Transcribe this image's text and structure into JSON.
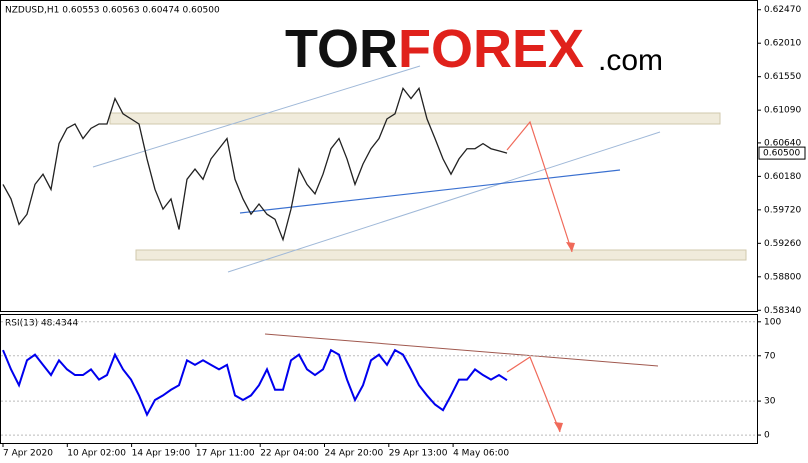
{
  "header": "NZDUSD,H1  0.60553 0.60563 0.60474 0.60500",
  "logo": {
    "part1": "TOR",
    "part2": "FOREX",
    "part3": ".com"
  },
  "charts": [
    {
      "type": "line",
      "color": "#222222",
      "ylim": [
        0.5833,
        0.6259
      ],
      "yticks": [
        {
          "value": 0.6247,
          "label": "0.62470"
        },
        {
          "value": 0.6201,
          "label": "0.62010"
        },
        {
          "value": 0.6155,
          "label": "0.61550"
        },
        {
          "value": 0.6109,
          "label": "0.61090"
        },
        {
          "value": 0.6064,
          "label": "0.60640"
        },
        {
          "value": 0.6018,
          "label": "0.60180"
        },
        {
          "value": 0.5972,
          "label": "0.59720"
        },
        {
          "value": 0.5926,
          "label": "0.59260"
        },
        {
          "value": 0.588,
          "label": "0.58800"
        },
        {
          "value": 0.5834,
          "label": "0.58340"
        }
      ],
      "current_price": {
        "value": 0.605,
        "label": "0.60500"
      },
      "values": [
        0.6007,
        0.5987,
        0.5952,
        0.5966,
        0.6007,
        0.6021,
        0.6,
        0.6063,
        0.6084,
        0.609,
        0.607,
        0.6084,
        0.609,
        0.609,
        0.6125,
        0.6104,
        0.6097,
        0.609,
        0.6042,
        0.6,
        0.5973,
        0.5987,
        0.5945,
        0.6014,
        0.6028,
        0.6014,
        0.6042,
        0.6056,
        0.607,
        0.6014,
        0.5987,
        0.5966,
        0.598,
        0.5966,
        0.5959,
        0.5931,
        0.5973,
        0.6028,
        0.6007,
        0.5994,
        0.6021,
        0.6056,
        0.607,
        0.6042,
        0.6007,
        0.6035,
        0.6056,
        0.607,
        0.6097,
        0.6104,
        0.6139,
        0.6125,
        0.6139,
        0.6097,
        0.607,
        0.6042,
        0.6021,
        0.6042,
        0.6056,
        0.6056,
        0.6063,
        0.6056,
        0.6053,
        0.605
      ]
    },
    {
      "type": "line",
      "title": "RSI(13) 48.4344",
      "color": "#0000ee",
      "ylim": [
        -7,
        106
      ],
      "yticks": [
        100,
        70,
        30,
        0
      ],
      "values": [
        75,
        58,
        44,
        66,
        71,
        62,
        53,
        66,
        58,
        53,
        53,
        58,
        49,
        53,
        71,
        58,
        49,
        35,
        18,
        31,
        35,
        40,
        44,
        66,
        62,
        66,
        62,
        58,
        62,
        35,
        31,
        35,
        44,
        58,
        40,
        40,
        66,
        71,
        58,
        53,
        58,
        75,
        71,
        49,
        31,
        44,
        66,
        71,
        62,
        75,
        71,
        58,
        44,
        35,
        27,
        22,
        35,
        49,
        49,
        58,
        53,
        49,
        53,
        48.4344
      ],
      "x_labels": [
        "7 Apr 2020",
        "10 Apr 02:00",
        "14 Apr 19:00",
        "17 Apr 11:00",
        "22 Apr 04:00",
        "24 Apr 20:00",
        "29 Apr 13:00",
        "4 May 06:00"
      ]
    }
  ]
}
